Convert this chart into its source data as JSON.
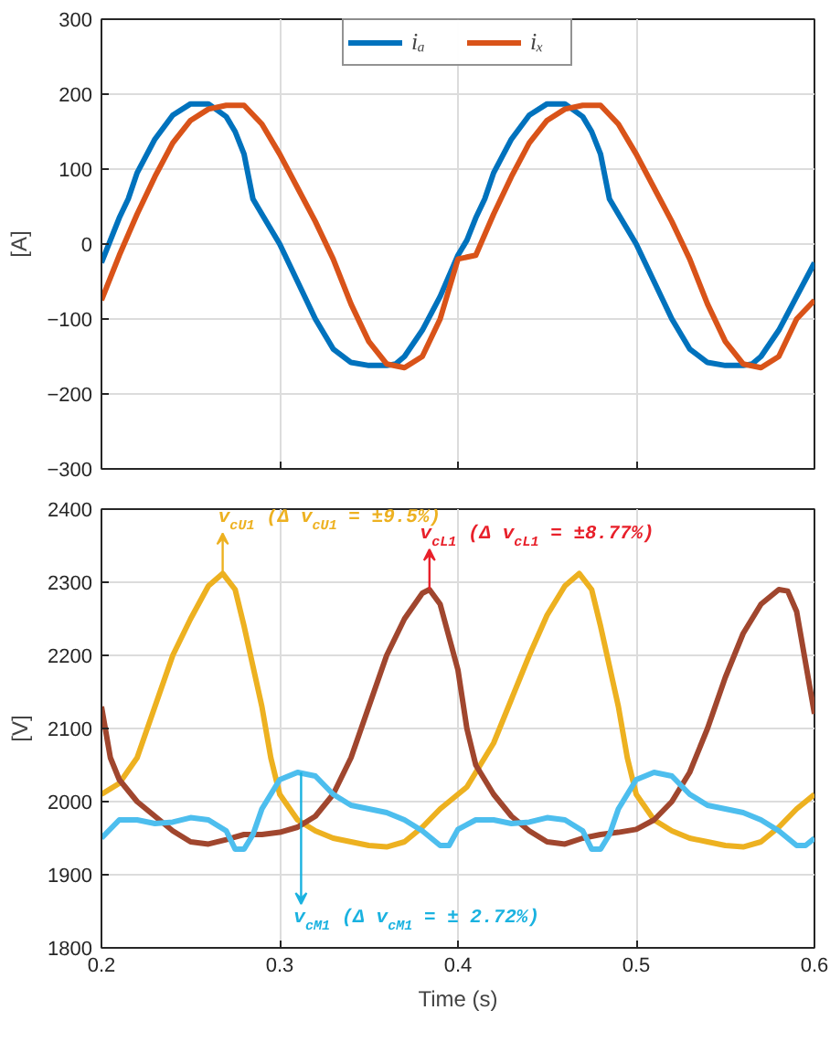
{
  "chart_data": [
    {
      "type": "line",
      "ylabel": "[A]",
      "xlim": [
        0.2,
        0.6
      ],
      "xticks": [
        0.2,
        0.3,
        0.4,
        0.5,
        0.6
      ],
      "ylim": [
        -300,
        300
      ],
      "yticks": [
        -300,
        -200,
        -100,
        0,
        100,
        200,
        300
      ],
      "tick_labels": "y",
      "grid": true,
      "legend": "top",
      "series": [
        {
          "name": "iₐ",
          "color": "#0072bd",
          "x": [
            0.2,
            0.205,
            0.21,
            0.215,
            0.22,
            0.23,
            0.24,
            0.25,
            0.26,
            0.27,
            0.275,
            0.28,
            0.285,
            0.29,
            0.3,
            0.31,
            0.32,
            0.33,
            0.34,
            0.35,
            0.36,
            0.365,
            0.37,
            0.38,
            0.39,
            0.4,
            0.405,
            0.41,
            0.415,
            0.42,
            0.43,
            0.44,
            0.45,
            0.46,
            0.47,
            0.475,
            0.48,
            0.485,
            0.49,
            0.5,
            0.51,
            0.52,
            0.53,
            0.54,
            0.55,
            0.56,
            0.565,
            0.57,
            0.58,
            0.59,
            0.6
          ],
          "values": [
            -25,
            5,
            35,
            60,
            95,
            140,
            172,
            187,
            187,
            170,
            150,
            120,
            60,
            40,
            0,
            -50,
            -100,
            -140,
            -158,
            -162,
            -162,
            -160,
            -150,
            -115,
            -70,
            -15,
            5,
            35,
            60,
            95,
            140,
            172,
            187,
            187,
            170,
            150,
            120,
            60,
            40,
            0,
            -50,
            -100,
            -140,
            -158,
            -162,
            -162,
            -160,
            -150,
            -115,
            -70,
            -25
          ]
        },
        {
          "name": "iₓ",
          "color": "#d95319",
          "x": [
            0.2,
            0.21,
            0.22,
            0.23,
            0.24,
            0.25,
            0.26,
            0.27,
            0.28,
            0.29,
            0.3,
            0.31,
            0.32,
            0.33,
            0.34,
            0.35,
            0.36,
            0.37,
            0.38,
            0.39,
            0.4,
            0.41,
            0.42,
            0.43,
            0.44,
            0.45,
            0.46,
            0.47,
            0.48,
            0.49,
            0.5,
            0.51,
            0.52,
            0.53,
            0.54,
            0.55,
            0.56,
            0.57,
            0.58,
            0.59,
            0.6
          ],
          "values": [
            -75,
            -15,
            40,
            90,
            135,
            165,
            180,
            185,
            185,
            160,
            120,
            75,
            30,
            -20,
            -80,
            -130,
            -160,
            -165,
            -150,
            -100,
            -20,
            -15,
            40,
            90,
            135,
            165,
            180,
            185,
            185,
            160,
            120,
            75,
            30,
            -20,
            -80,
            -130,
            -160,
            -165,
            -150,
            -100,
            -75
          ]
        }
      ]
    },
    {
      "type": "line",
      "xlabel": "Time (s)",
      "ylabel": "[V]",
      "xlim": [
        0.2,
        0.6
      ],
      "xticks": [
        0.2,
        0.3,
        0.4,
        0.5,
        0.6
      ],
      "ylim": [
        1800,
        2400
      ],
      "yticks": [
        1800,
        1900,
        2000,
        2100,
        2200,
        2300,
        2400
      ],
      "grid": true,
      "annotations": [
        {
          "text": "v$_{cU1}$ (Δ v$_{cU1}$ = ±9.5%)",
          "x": 0.268,
          "y": 2312
        },
        {
          "text": "v$_{cL1}$ (Δ v$_{cL1}$ = ±8.77%)",
          "x": 0.384,
          "y": 2290
        },
        {
          "text": "v$_{cM1}$ (Δ v$_{cM1}$ = ± 2.72%)",
          "x": 0.312,
          "y": 2040
        }
      ],
      "series": [
        {
          "color": "#edb120",
          "x": [
            0.2,
            0.21,
            0.22,
            0.23,
            0.24,
            0.25,
            0.26,
            0.268,
            0.275,
            0.28,
            0.29,
            0.295,
            0.3,
            0.31,
            0.32,
            0.33,
            0.34,
            0.35,
            0.36,
            0.37,
            0.38,
            0.39,
            0.4,
            0.405,
            0.41,
            0.42,
            0.43,
            0.44,
            0.45,
            0.46,
            0.468,
            0.475,
            0.48,
            0.49,
            0.495,
            0.5,
            0.51,
            0.52,
            0.53,
            0.54,
            0.55,
            0.56,
            0.57,
            0.58,
            0.59,
            0.6
          ],
          "values": [
            2010,
            2025,
            2060,
            2130,
            2200,
            2250,
            2295,
            2312,
            2290,
            2240,
            2130,
            2060,
            2010,
            1975,
            1960,
            1950,
            1945,
            1940,
            1938,
            1945,
            1965,
            1990,
            2010,
            2020,
            2040,
            2080,
            2140,
            2200,
            2255,
            2295,
            2312,
            2290,
            2240,
            2130,
            2060,
            2010,
            1975,
            1960,
            1950,
            1945,
            1940,
            1938,
            1945,
            1965,
            1990,
            2010
          ]
        },
        {
          "color": "#a0462e",
          "x": [
            0.2,
            0.205,
            0.21,
            0.22,
            0.23,
            0.24,
            0.25,
            0.26,
            0.27,
            0.28,
            0.29,
            0.3,
            0.31,
            0.32,
            0.33,
            0.34,
            0.35,
            0.36,
            0.37,
            0.38,
            0.384,
            0.39,
            0.4,
            0.405,
            0.41,
            0.42,
            0.43,
            0.44,
            0.45,
            0.46,
            0.47,
            0.48,
            0.49,
            0.5,
            0.51,
            0.52,
            0.53,
            0.54,
            0.55,
            0.56,
            0.57,
            0.58,
            0.585,
            0.59,
            0.6
          ],
          "values": [
            2130,
            2060,
            2030,
            2000,
            1980,
            1960,
            1945,
            1942,
            1948,
            1955,
            1955,
            1958,
            1965,
            1980,
            2010,
            2060,
            2130,
            2200,
            2250,
            2285,
            2290,
            2270,
            2180,
            2100,
            2050,
            2010,
            1980,
            1960,
            1945,
            1942,
            1950,
            1955,
            1958,
            1962,
            1975,
            2000,
            2040,
            2100,
            2170,
            2230,
            2270,
            2290,
            2288,
            2260,
            2120
          ]
        },
        {
          "color": "#4dbeee",
          "x": [
            0.2,
            0.21,
            0.22,
            0.23,
            0.24,
            0.25,
            0.26,
            0.27,
            0.275,
            0.28,
            0.285,
            0.29,
            0.3,
            0.31,
            0.32,
            0.33,
            0.34,
            0.35,
            0.36,
            0.37,
            0.38,
            0.39,
            0.395,
            0.4,
            0.41,
            0.42,
            0.43,
            0.44,
            0.45,
            0.46,
            0.47,
            0.475,
            0.48,
            0.485,
            0.49,
            0.5,
            0.51,
            0.52,
            0.53,
            0.54,
            0.55,
            0.56,
            0.57,
            0.58,
            0.59,
            0.595,
            0.6
          ],
          "values": [
            1950,
            1975,
            1975,
            1970,
            1972,
            1978,
            1975,
            1960,
            1935,
            1935,
            1955,
            1990,
            2030,
            2040,
            2035,
            2010,
            1995,
            1990,
            1985,
            1975,
            1960,
            1940,
            1940,
            1962,
            1975,
            1975,
            1970,
            1972,
            1978,
            1975,
            1960,
            1935,
            1935,
            1955,
            1990,
            2030,
            2040,
            2035,
            2010,
            1995,
            1990,
            1985,
            1975,
            1960,
            1940,
            1940,
            1950
          ]
        }
      ]
    }
  ]
}
